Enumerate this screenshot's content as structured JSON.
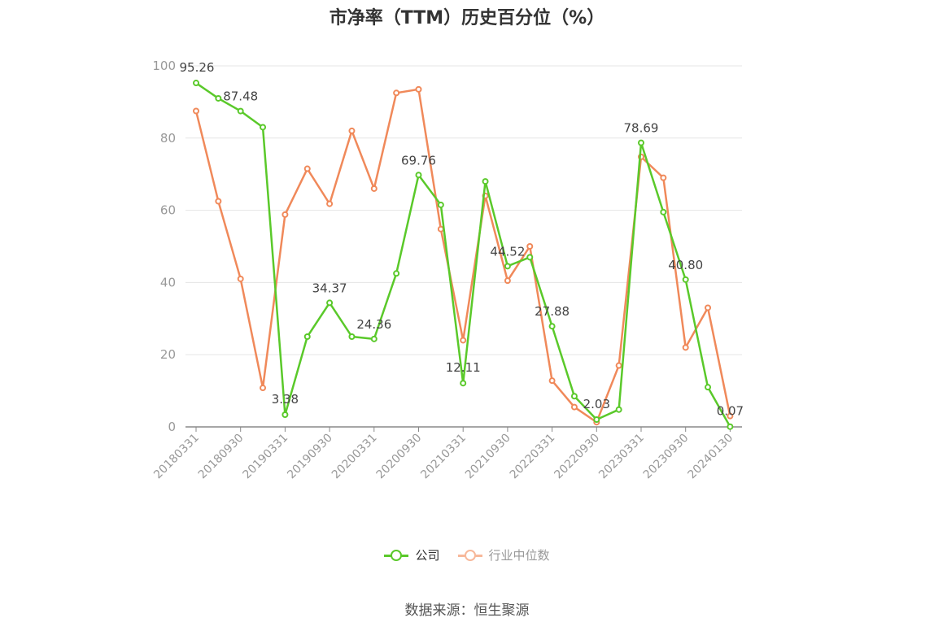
{
  "title": "市净率（TTM）历史百分位（%）",
  "source": "数据来源：恒生聚源",
  "colors": {
    "company": "#5ac92a",
    "industry": "#f0895a",
    "grid": "#e5e5e5",
    "axis": "#888888"
  },
  "chart_data": {
    "type": "line",
    "title": "市净率（TTM）历史百分位（%）",
    "ylim": [
      0,
      100
    ],
    "yticks": [
      0,
      20,
      40,
      60,
      80,
      100
    ],
    "grid": true,
    "legend_position": "bottom",
    "x_tick_labels": [
      "20180331",
      "20180930",
      "20190331",
      "20190930",
      "20200331",
      "20200930",
      "20210331",
      "20210930",
      "20220331",
      "20220930",
      "20230331",
      "20230930",
      "20240130"
    ],
    "x": [
      "20180331",
      "20180630",
      "20180930",
      "20181231",
      "20190331",
      "20190630",
      "20190930",
      "20191231",
      "20200331",
      "20200630",
      "20200930",
      "20201231",
      "20210331",
      "20210630",
      "20210930",
      "20211231",
      "20220331",
      "20220630",
      "20220930",
      "20221231",
      "20230331",
      "20230630",
      "20230930",
      "20231231",
      "20240130"
    ],
    "series": [
      {
        "name": "公司",
        "values": [
          95.26,
          91.0,
          87.48,
          83.0,
          3.38,
          25.0,
          34.37,
          25.0,
          24.36,
          42.5,
          69.76,
          61.5,
          12.11,
          68.0,
          44.52,
          47.0,
          27.88,
          8.5,
          2.03,
          4.8,
          78.69,
          59.5,
          40.8,
          11.0,
          0.07
        ],
        "labels": [
          "95.26",
          "",
          "87.48",
          "",
          "3.38",
          "",
          "34.37",
          "",
          "24.36",
          "",
          "69.76",
          "",
          "12.11",
          "",
          "44.52",
          "",
          "27.88",
          "",
          "2.03",
          "",
          "78.69",
          "",
          "40.80",
          "",
          "0.07"
        ]
      },
      {
        "name": "行业中位数",
        "values": [
          87.5,
          62.5,
          41.0,
          10.8,
          58.8,
          71.5,
          61.8,
          82.0,
          66.0,
          92.5,
          93.5,
          54.8,
          24.0,
          64.0,
          40.5,
          50.0,
          12.8,
          5.5,
          1.3,
          17.0,
          74.8,
          69.0,
          22.0,
          33.0,
          3.0
        ]
      }
    ]
  }
}
